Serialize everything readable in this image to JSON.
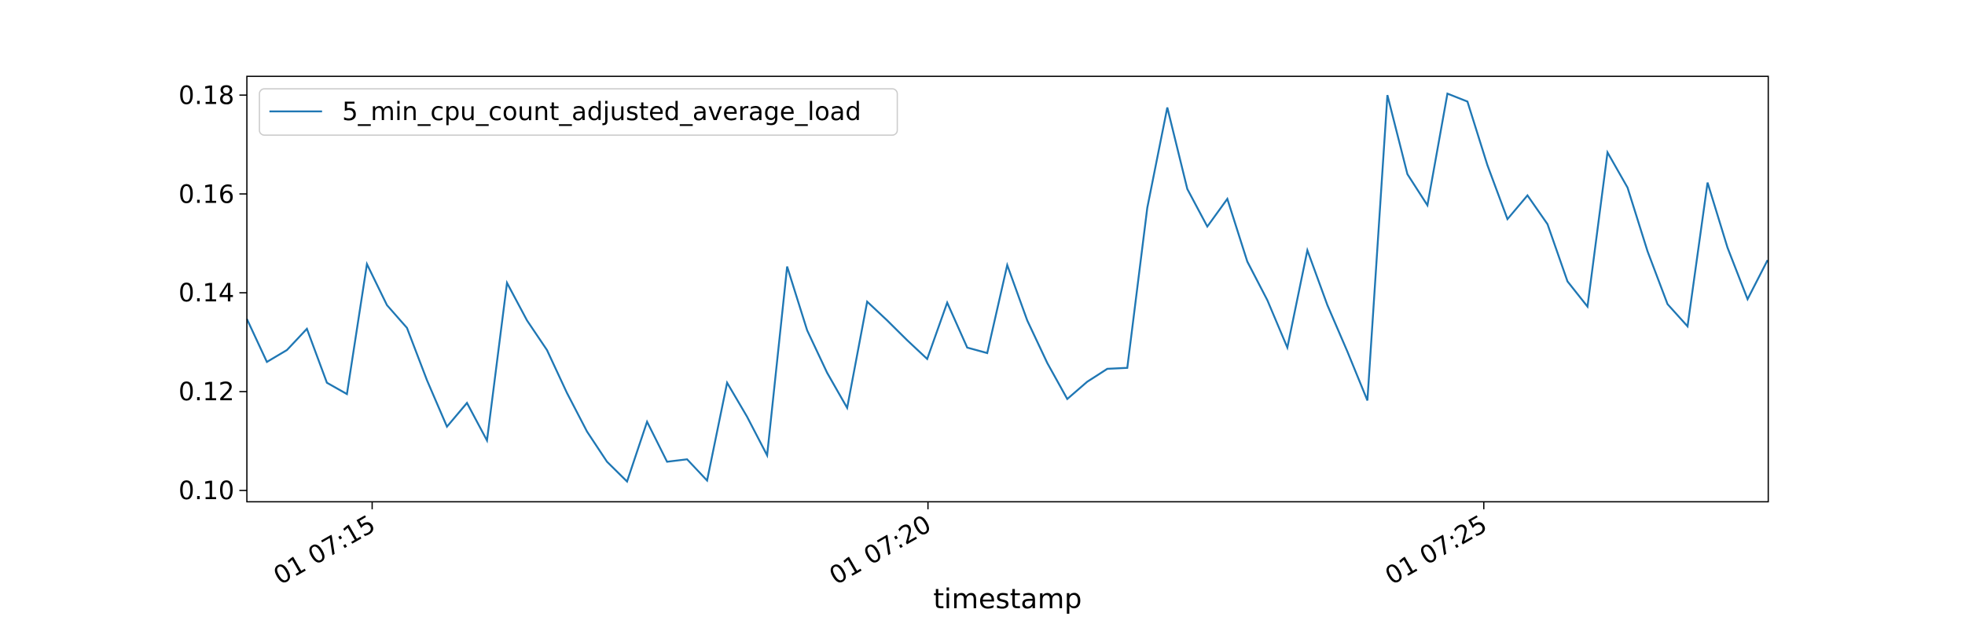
{
  "chart_data": {
    "type": "line",
    "xlabel": "timestamp",
    "x": [
      13.873,
      14.053,
      14.233,
      14.413,
      14.593,
      14.773,
      14.953,
      15.133,
      15.313,
      15.493,
      15.673,
      15.853,
      16.033,
      16.213,
      16.393,
      16.573,
      16.753,
      16.933,
      17.113,
      17.293,
      17.473,
      17.653,
      17.833,
      18.013,
      18.193,
      18.373,
      18.553,
      18.733,
      18.913,
      19.093,
      19.273,
      19.453,
      19.633,
      19.813,
      19.993,
      20.173,
      20.353,
      20.533,
      20.713,
      20.893,
      21.073,
      21.253,
      21.433,
      21.613,
      21.793,
      21.973,
      22.153,
      22.333,
      22.513,
      22.693,
      22.873,
      23.053,
      23.233,
      23.413,
      23.593,
      23.773,
      23.953,
      24.133,
      24.313,
      24.493,
      24.673,
      24.853,
      25.033,
      25.213,
      25.393,
      25.573,
      25.753,
      25.933,
      26.113,
      26.293,
      26.473,
      26.653,
      26.833,
      27.013,
      27.193,
      27.373,
      27.553
    ],
    "series": [
      {
        "name": "5_min_cpu_count_adjusted_average_load",
        "color": "#1f77b4",
        "values": [
          0.1347,
          0.126,
          0.1284,
          0.1327,
          0.1218,
          0.1195,
          0.1458,
          0.1375,
          0.1329,
          0.1223,
          0.1129,
          0.1177,
          0.1101,
          0.142,
          0.1344,
          0.1284,
          0.1197,
          0.1119,
          0.1058,
          0.1018,
          0.1139,
          0.1058,
          0.1063,
          0.102,
          0.1218,
          0.1149,
          0.1071,
          0.1453,
          0.1324,
          0.1238,
          0.1167,
          0.1382,
          0.1344,
          0.1304,
          0.1266,
          0.138,
          0.1289,
          0.1278,
          0.1456,
          0.1344,
          0.1258,
          0.1185,
          0.122,
          0.1246,
          0.1248,
          0.1572,
          0.1775,
          0.161,
          0.1534,
          0.159,
          0.1463,
          0.1385,
          0.1289,
          0.1486,
          0.1375,
          0.1281,
          0.1182,
          0.18,
          0.164,
          0.1577,
          0.1803,
          0.1787,
          0.1658,
          0.1549,
          0.1597,
          0.1539,
          0.1423,
          0.1372,
          0.1684,
          0.1613,
          0.1484,
          0.1377,
          0.1332,
          0.1623,
          0.1491,
          0.1387,
          0.1466
        ]
      }
    ],
    "xlim": [
      13.873,
      27.559
    ],
    "xticks": [
      {
        "value": 15,
        "label": "01 07:15"
      },
      {
        "value": 20,
        "label": "01 07:20"
      },
      {
        "value": 25,
        "label": "01 07:25"
      }
    ],
    "ylim": [
      0.0977,
      0.1838
    ],
    "yticks": [
      {
        "value": 0.1,
        "label": "0.10"
      },
      {
        "value": 0.12,
        "label": "0.12"
      },
      {
        "value": 0.14,
        "label": "0.14"
      },
      {
        "value": 0.16,
        "label": "0.16"
      },
      {
        "value": 0.18,
        "label": "0.18"
      }
    ],
    "legend": "upper left"
  }
}
